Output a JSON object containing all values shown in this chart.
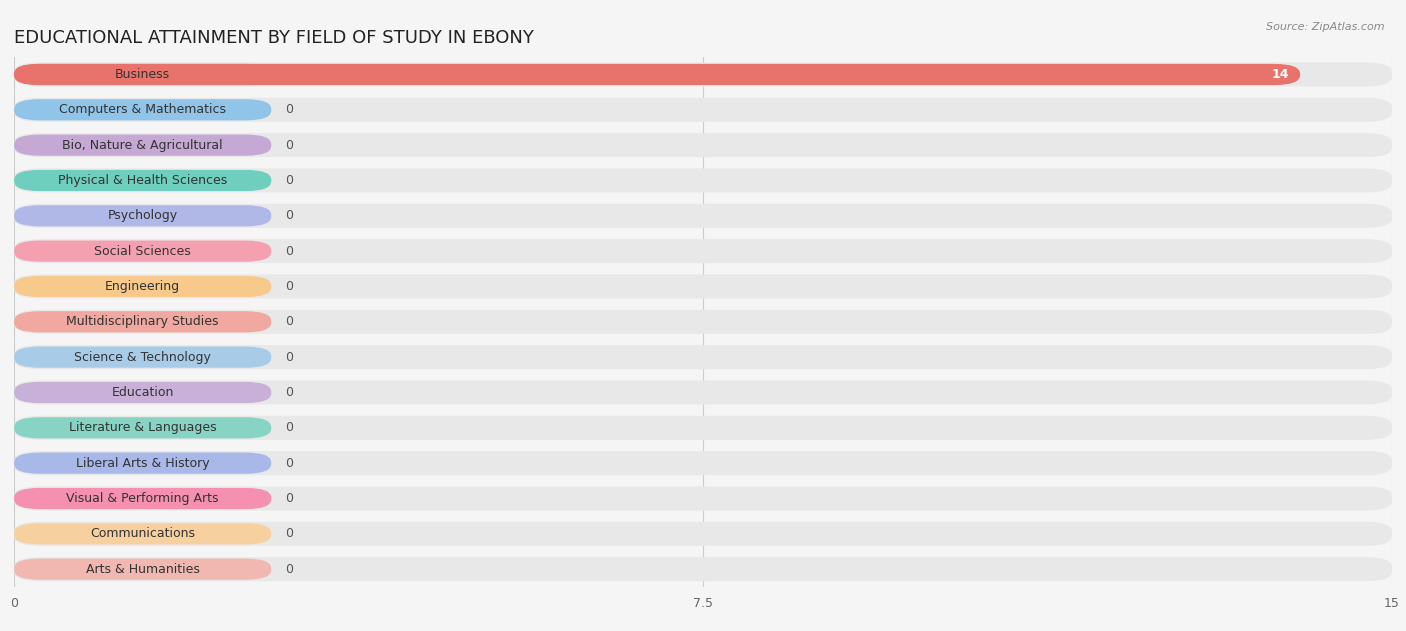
{
  "title": "EDUCATIONAL ATTAINMENT BY FIELD OF STUDY IN EBONY",
  "source": "Source: ZipAtlas.com",
  "categories": [
    "Business",
    "Computers & Mathematics",
    "Bio, Nature & Agricultural",
    "Physical & Health Sciences",
    "Psychology",
    "Social Sciences",
    "Engineering",
    "Multidisciplinary Studies",
    "Science & Technology",
    "Education",
    "Literature & Languages",
    "Liberal Arts & History",
    "Visual & Performing Arts",
    "Communications",
    "Arts & Humanities"
  ],
  "values": [
    14,
    0,
    0,
    0,
    0,
    0,
    0,
    0,
    0,
    0,
    0,
    0,
    0,
    0,
    0
  ],
  "bar_colors": [
    "#e8736c",
    "#90c4e8",
    "#c5a8d4",
    "#6ecfbe",
    "#b0b8e8",
    "#f5a0b0",
    "#f7c98a",
    "#f0a8a0",
    "#a8cce8",
    "#c8b0d8",
    "#88d4c4",
    "#a8b8e8",
    "#f590b0",
    "#f7d0a0",
    "#f0b8b0"
  ],
  "xlim": [
    0,
    15
  ],
  "xticks": [
    0,
    7.5,
    15
  ],
  "background_color": "#f5f5f5",
  "bar_bg_color": "#e8e8e8",
  "title_fontsize": 13,
  "label_fontsize": 9,
  "tick_fontsize": 9,
  "value_fontsize": 9,
  "label_bar_width": 2.8
}
